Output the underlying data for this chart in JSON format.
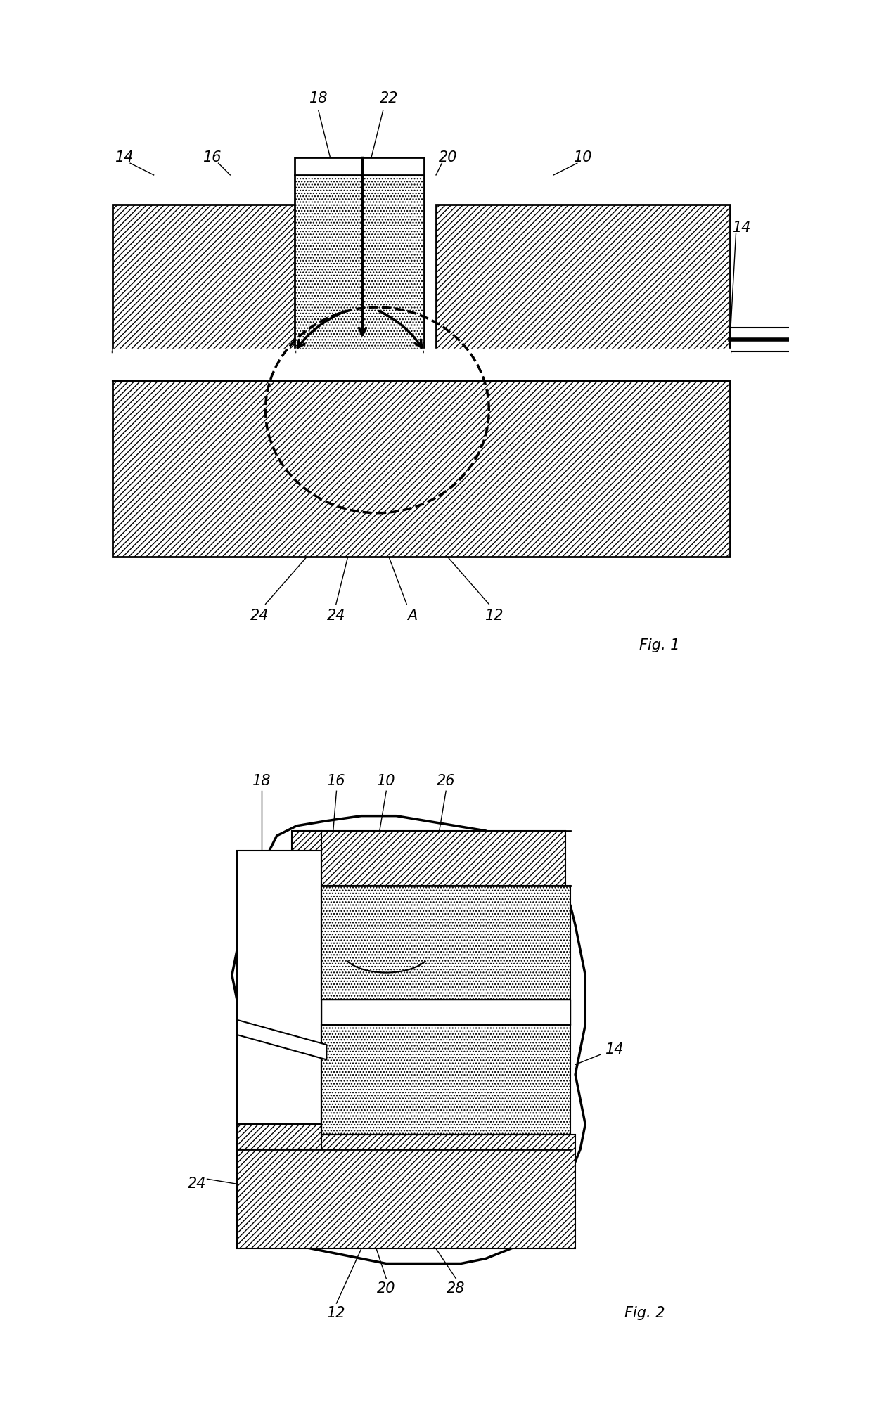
{
  "bg_color": "#ffffff",
  "line_color": "#000000",
  "fig1_label": "Fig. 1",
  "fig2_label": "Fig. 2",
  "labels_fig1": {
    "14_left": [
      "14",
      0.7,
      8.2
    ],
    "16": [
      "16",
      2.2,
      8.5
    ],
    "18": [
      "18",
      3.8,
      9.3
    ],
    "22": [
      "22",
      5.0,
      9.3
    ],
    "20": [
      "20",
      5.5,
      7.9
    ],
    "10": [
      "10",
      7.8,
      8.2
    ],
    "14_right": [
      "14",
      9.6,
      7.2
    ],
    "24_left": [
      "24",
      3.1,
      1.1
    ],
    "24_right": [
      "24",
      4.3,
      1.1
    ],
    "A": [
      "A",
      5.5,
      1.1
    ],
    "12": [
      "12",
      7.0,
      1.1
    ]
  },
  "labels_fig2": {
    "18": [
      "18",
      2.5,
      10.4
    ],
    "16": [
      "16",
      4.0,
      10.4
    ],
    "10": [
      "10",
      5.0,
      10.4
    ],
    "26": [
      "26",
      6.2,
      10.4
    ],
    "14": [
      "14",
      8.8,
      6.5
    ],
    "24": [
      "24",
      1.5,
      3.8
    ],
    "20": [
      "20",
      5.0,
      1.5
    ],
    "28": [
      "28",
      6.4,
      1.5
    ],
    "12": [
      "12",
      4.0,
      1.0
    ]
  }
}
